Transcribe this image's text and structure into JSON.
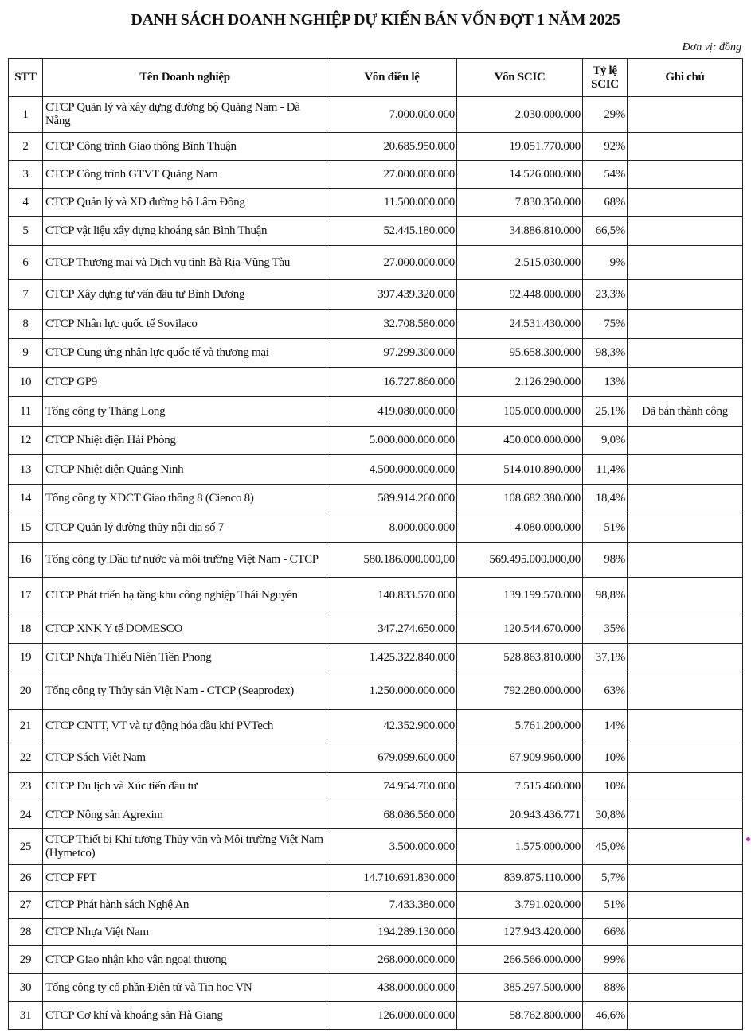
{
  "title": "DANH SÁCH DOANH NGHIỆP DỰ KIẾN BÁN VỐN ĐỢT 1 NĂM 2025",
  "unit": "Đơn vị: đồng",
  "headers": {
    "stt": "STT",
    "name": "Tên Doanh nghiệp",
    "charter_capital": "Vốn điều lệ",
    "scic_capital": "Vốn SCIC",
    "scic_ratio": "Tỷ lệ SCIC",
    "note": "Ghi chú"
  },
  "rows": [
    {
      "stt": "1",
      "name": "CTCP Quản lý và xây dựng đường bộ Quảng Nam - Đà Nẵng",
      "charter": "7.000.000.000",
      "scic": "2.030.000.000",
      "ratio": "29%",
      "note": ""
    },
    {
      "stt": "2",
      "name": "CTCP Công trình Giao thông Bình Thuận",
      "charter": "20.685.950.000",
      "scic": "19.051.770.000",
      "ratio": "92%",
      "note": ""
    },
    {
      "stt": "3",
      "name": "CTCP Công trình GTVT Quảng Nam",
      "charter": "27.000.000.000",
      "scic": "14.526.000.000",
      "ratio": "54%",
      "note": ""
    },
    {
      "stt": "4",
      "name": "CTCP Quản lý và XD đường bộ Lâm Đồng",
      "charter": "11.500.000.000",
      "scic": "7.830.350.000",
      "ratio": "68%",
      "note": ""
    },
    {
      "stt": "5",
      "name": "CTCP vật liệu xây dựng khoáng sản Bình Thuận",
      "charter": "52.445.180.000",
      "scic": "34.886.810.000",
      "ratio": "66,5%",
      "note": ""
    },
    {
      "stt": "6",
      "name": "CTCP Thương mại và Dịch vụ tỉnh Bà Rịa-Vũng Tàu",
      "charter": "27.000.000.000",
      "scic": "2.515.030.000",
      "ratio": "9%",
      "note": ""
    },
    {
      "stt": "7",
      "name": "CTCP Xây dựng tư vấn đầu tư Bình Dương",
      "charter": "397.439.320.000",
      "scic": "92.448.000.000",
      "ratio": "23,3%",
      "note": ""
    },
    {
      "stt": "8",
      "name": "CTCP Nhân lực quốc tế Sovilaco",
      "charter": "32.708.580.000",
      "scic": "24.531.430.000",
      "ratio": "75%",
      "note": ""
    },
    {
      "stt": "9",
      "name": "CTCP Cung ứng nhân lực quốc tế và thương mại",
      "charter": "97.299.300.000",
      "scic": "95.658.300.000",
      "ratio": "98,3%",
      "note": ""
    },
    {
      "stt": "10",
      "name": "CTCP GP9",
      "charter": "16.727.860.000",
      "scic": "2.126.290.000",
      "ratio": "13%",
      "note": ""
    },
    {
      "stt": "11",
      "name": "Tổng công ty Thăng Long",
      "charter": "419.080.000.000",
      "scic": "105.000.000.000",
      "ratio": "25,1%",
      "note": "Đã bán thành công"
    },
    {
      "stt": "12",
      "name": "CTCP Nhiệt điện Hải Phòng",
      "charter": "5.000.000.000.000",
      "scic": "450.000.000.000",
      "ratio": "9,0%",
      "note": ""
    },
    {
      "stt": "13",
      "name": "CTCP Nhiệt điện Quảng Ninh",
      "charter": "4.500.000.000.000",
      "scic": "514.010.890.000",
      "ratio": "11,4%",
      "note": ""
    },
    {
      "stt": "14",
      "name": "Tổng công ty XDCT Giao thông 8 (Cienco 8)",
      "charter": "589.914.260.000",
      "scic": "108.682.380.000",
      "ratio": "18,4%",
      "note": ""
    },
    {
      "stt": "15",
      "name": "CTCP Quản lý đường thủy nội địa số 7",
      "charter": "8.000.000.000",
      "scic": "4.080.000.000",
      "ratio": "51%",
      "note": ""
    },
    {
      "stt": "16",
      "name": "Tổng công ty Đầu tư nước và môi trường Việt Nam - CTCP",
      "charter": "580.186.000.000,00",
      "scic": "569.495.000.000,00",
      "ratio": "98%",
      "note": ""
    },
    {
      "stt": "17",
      "name": "CTCP Phát triển hạ tầng khu công nghiệp Thái Nguyên",
      "charter": "140.833.570.000",
      "scic": "139.199.570.000",
      "ratio": "98,8%",
      "note": ""
    },
    {
      "stt": "18",
      "name": "CTCP XNK Y tế DOMESCO",
      "charter": "347.274.650.000",
      "scic": "120.544.670.000",
      "ratio": "35%",
      "note": ""
    },
    {
      "stt": "19",
      "name": "CTCP Nhựa Thiếu Niên Tiền Phong",
      "charter": "1.425.322.840.000",
      "scic": "528.863.810.000",
      "ratio": "37,1%",
      "note": ""
    },
    {
      "stt": "20",
      "name": "Tổng công ty Thủy sản Việt Nam - CTCP (Seaprodex)",
      "charter": "1.250.000.000.000",
      "scic": "792.280.000.000",
      "ratio": "63%",
      "note": ""
    },
    {
      "stt": "21",
      "name": "CTCP CNTT, VT và tự động hóa dầu khí PVTech",
      "charter": "42.352.900.000",
      "scic": "5.761.200.000",
      "ratio": "14%",
      "note": ""
    },
    {
      "stt": "22",
      "name": "CTCP Sách Việt Nam",
      "charter": "679.099.600.000",
      "scic": "67.909.960.000",
      "ratio": "10%",
      "note": ""
    },
    {
      "stt": "23",
      "name": "CTCP Du lịch và Xúc tiến đầu tư",
      "charter": "74.954.700.000",
      "scic": "7.515.460.000",
      "ratio": "10%",
      "note": ""
    },
    {
      "stt": "24",
      "name": "CTCP Nông sản Agrexim",
      "charter": "68.086.560.000",
      "scic": "20.943.436.771",
      "ratio": "30,8%",
      "note": ""
    },
    {
      "stt": "25",
      "name": "CTCP Thiết bị Khí tượng Thủy văn và Môi trường Việt Nam (Hymetco)",
      "charter": "3.500.000.000",
      "scic": "1.575.000.000",
      "ratio": "45,0%",
      "note": ""
    },
    {
      "stt": "26",
      "name": "CTCP FPT",
      "charter": "14.710.691.830.000",
      "scic": "839.875.110.000",
      "ratio": "5,7%",
      "note": ""
    },
    {
      "stt": "27",
      "name": "CTCP Phát hành sách Nghệ An",
      "charter": "7.433.380.000",
      "scic": "3.791.020.000",
      "ratio": "51%",
      "note": ""
    },
    {
      "stt": "28",
      "name": "CTCP Nhựa Việt Nam",
      "charter": "194.289.130.000",
      "scic": "127.943.420.000",
      "ratio": "66%",
      "note": ""
    },
    {
      "stt": "29",
      "name": "CTCP Giao nhận kho vận ngoại thương",
      "charter": "268.000.000.000",
      "scic": "266.566.000.000",
      "ratio": "99%",
      "note": ""
    },
    {
      "stt": "30",
      "name": "Tổng công ty cổ phần Điện tử và Tin học VN",
      "charter": "438.000.000.000",
      "scic": "385.297.500.000",
      "ratio": "88%",
      "note": ""
    },
    {
      "stt": "31",
      "name": "CTCP Cơ khí và khoáng sản Hà Giang",
      "charter": "126.000.000.000",
      "scic": "58.762.800.000",
      "ratio": "46,6%",
      "note": ""
    }
  ]
}
